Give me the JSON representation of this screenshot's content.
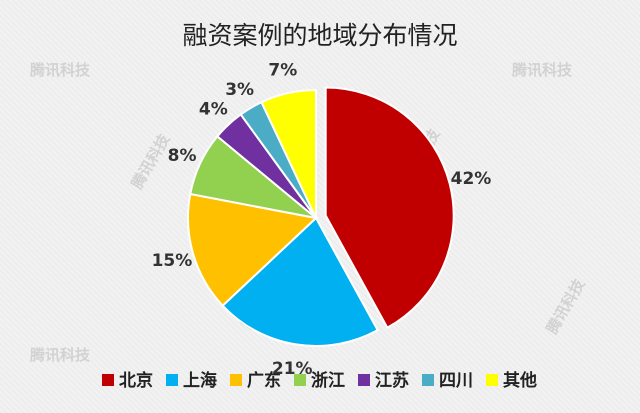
{
  "chart_data": {
    "type": "pie",
    "title": "融资案例的地域分布情况",
    "categories": [
      "北京",
      "上海",
      "广东",
      "浙江",
      "江苏",
      "四川",
      "其他"
    ],
    "values": [
      42,
      21,
      15,
      8,
      4,
      3,
      7
    ],
    "labels": [
      "42%",
      "21%",
      "15%",
      "8%",
      "4%",
      "3%",
      "7%"
    ],
    "colors": [
      "#c00000",
      "#00b0f0",
      "#ffc000",
      "#92d050",
      "#7030a0",
      "#4bacc6",
      "#ffff00"
    ],
    "exploded": [
      "北京"
    ],
    "legend_position": "bottom"
  },
  "watermark": "腾讯科技"
}
